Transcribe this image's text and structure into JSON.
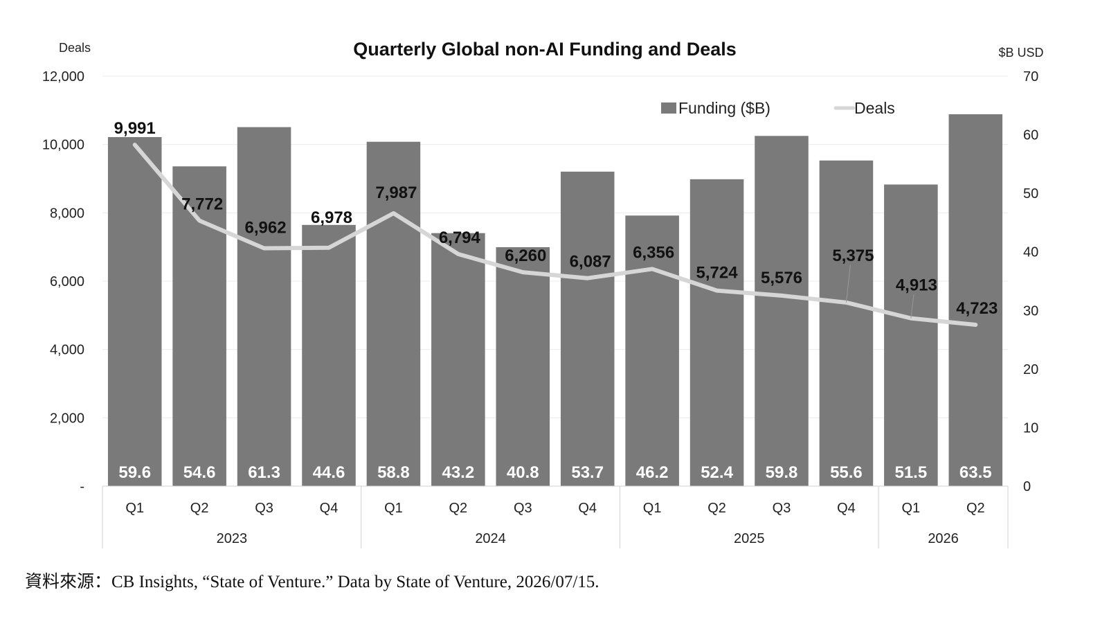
{
  "chart_data": {
    "type": "bar",
    "title": "Quarterly Global non-AI Funding and Deals",
    "left_axis_label": "Deals",
    "right_axis_label": "$B USD",
    "left_ylim": [
      0,
      12000
    ],
    "left_ticks": [
      {
        "value": 0,
        "label": "-"
      },
      {
        "value": 2000,
        "label": "2,000"
      },
      {
        "value": 4000,
        "label": "4,000"
      },
      {
        "value": 6000,
        "label": "6,000"
      },
      {
        "value": 8000,
        "label": "8,000"
      },
      {
        "value": 10000,
        "label": "10,000"
      },
      {
        "value": 12000,
        "label": "12,000"
      }
    ],
    "right_ylim": [
      0,
      70
    ],
    "right_ticks": [
      {
        "value": 0,
        "label": "0"
      },
      {
        "value": 10,
        "label": "10"
      },
      {
        "value": 20,
        "label": "20"
      },
      {
        "value": 30,
        "label": "30"
      },
      {
        "value": 40,
        "label": "40"
      },
      {
        "value": 50,
        "label": "50"
      },
      {
        "value": 60,
        "label": "60"
      },
      {
        "value": 70,
        "label": "70"
      }
    ],
    "grid": true,
    "legend_position": "top-right",
    "categories": [
      "Q1",
      "Q2",
      "Q3",
      "Q4",
      "Q1",
      "Q2",
      "Q3",
      "Q4",
      "Q1",
      "Q2",
      "Q3",
      "Q4",
      "Q1",
      "Q2"
    ],
    "years": [
      {
        "label": "2023",
        "count": 4
      },
      {
        "label": "2024",
        "count": 4
      },
      {
        "label": "2025",
        "count": 4
      },
      {
        "label": "2026",
        "count": 2
      }
    ],
    "series": [
      {
        "name": "Funding ($B)",
        "type": "bar",
        "axis": "right",
        "color": "#7a7a7a",
        "values": [
          59.6,
          54.6,
          61.3,
          44.6,
          58.8,
          43.2,
          40.8,
          53.7,
          46.2,
          52.4,
          59.8,
          55.6,
          51.5,
          63.5
        ],
        "labels": [
          "59.6",
          "54.6",
          "61.3",
          "44.6",
          "58.8",
          "43.2",
          "40.8",
          "53.7",
          "46.2",
          "52.4",
          "59.8",
          "55.6",
          "51.5",
          "63.5"
        ]
      },
      {
        "name": "Deals",
        "type": "line",
        "axis": "left",
        "color": "#d6d6d6",
        "values": [
          9991,
          7772,
          6962,
          6978,
          7987,
          6794,
          6260,
          6087,
          6356,
          5724,
          5576,
          5375,
          4913,
          4723
        ],
        "labels": [
          "9,991",
          "7,772",
          "6,962",
          "6,978",
          "7,987",
          "6,794",
          "6,260",
          "6,087",
          "6,356",
          "5,724",
          "5,576",
          "5,375",
          "4,913",
          "4,723"
        ]
      }
    ]
  },
  "source": "資料來源：CB Insights, “State of Venture.” Data by State of Venture, 2026/07/15."
}
